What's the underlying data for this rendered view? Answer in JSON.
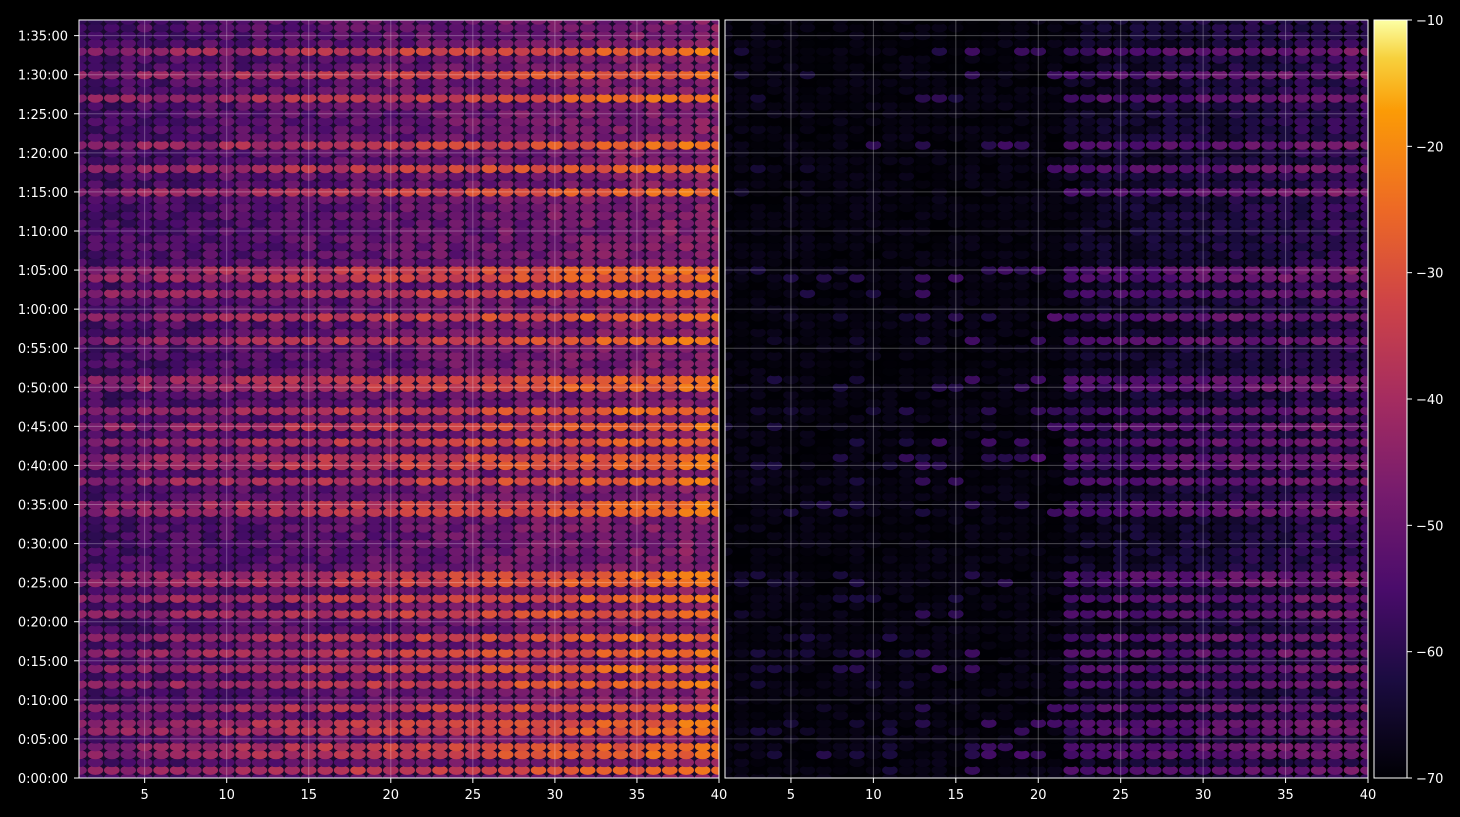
{
  "chart_data": {
    "type": "heatmap",
    "title": "",
    "panels": [
      {
        "name": "",
        "x_range": [
          1,
          40
        ],
        "x_ticks": [
          5,
          10,
          15,
          20,
          25,
          30,
          35,
          40
        ],
        "x_tick_labels": [
          "5",
          "10",
          "15",
          "20",
          "25",
          "30",
          "35",
          "40"
        ]
      },
      {
        "name": "",
        "x_range": [
          1,
          40
        ],
        "x_ticks": [
          5,
          10,
          15,
          20,
          25,
          30,
          35,
          40
        ],
        "x_tick_labels": [
          "5",
          "10",
          "15",
          "20",
          "25",
          "30",
          "35",
          "40"
        ]
      }
    ],
    "y_range_minutes": [
      0,
      97
    ],
    "y_ticks_minutes": [
      0,
      5,
      10,
      15,
      20,
      25,
      30,
      35,
      40,
      45,
      50,
      55,
      60,
      65,
      70,
      75,
      80,
      85,
      90,
      95
    ],
    "y_tick_labels": [
      "0:00:00",
      "0:05:00",
      "0:10:00",
      "0:15:00",
      "0:20:00",
      "0:25:00",
      "0:30:00",
      "0:35:00",
      "0:40:00",
      "0:45:00",
      "0:50:00",
      "0:55:00",
      "1:00:00",
      "1:05:00",
      "1:10:00",
      "1:15:00",
      "1:20:00",
      "1:25:00",
      "1:30:00",
      "1:35:00"
    ],
    "colorbar": {
      "colormap": "inferno",
      "range": [
        -70,
        -10
      ],
      "ticks": [
        -70,
        -60,
        -50,
        -40,
        -30,
        -20,
        -10
      ],
      "tick_labels": [
        "−70",
        "−60",
        "−50",
        "−40",
        "−30",
        "−20",
        "−10"
      ]
    },
    "strong_rows_minutes": [
      1,
      3,
      4,
      6,
      7,
      9,
      12,
      14,
      16,
      18,
      21,
      23,
      25,
      26,
      34,
      35,
      38,
      40,
      41,
      43,
      45,
      47,
      50,
      51,
      56,
      59,
      62,
      64,
      65,
      75,
      78,
      81,
      87,
      90,
      93
    ],
    "panel_levels": {
      "left_base": -52,
      "left_slope_per_unit": 0.5,
      "right_quiet": -70,
      "right_active_start": 22,
      "right_base": -62
    },
    "grid": true
  }
}
